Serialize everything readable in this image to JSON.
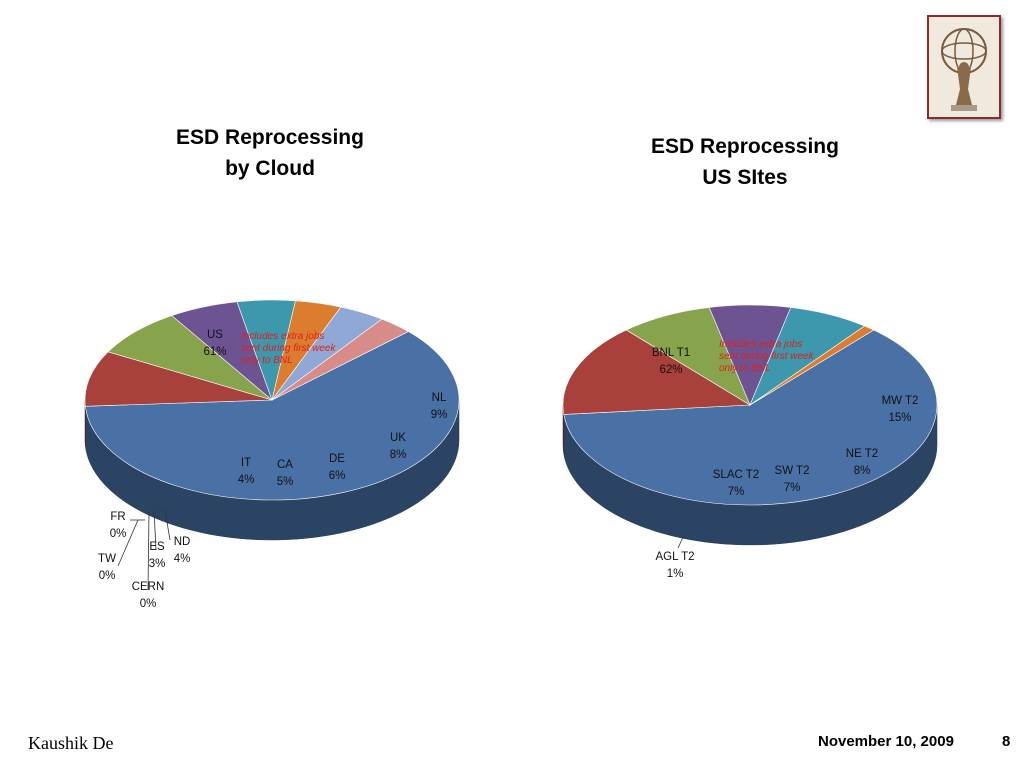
{
  "chart_data": [
    {
      "type": "pie",
      "title": [
        "ESD Reprocessing",
        "by Cloud"
      ],
      "annotation": [
        "Includes extra jobs",
        "sent during first week",
        "only to BNL"
      ],
      "slices": [
        {
          "name": "US",
          "value": 61,
          "label": "61%",
          "color": "#4a71a5"
        },
        {
          "name": "NL",
          "value": 9,
          "label": "9%",
          "color": "#a8403c"
        },
        {
          "name": "UK",
          "value": 8,
          "label": "8%",
          "color": "#87a34c"
        },
        {
          "name": "DE",
          "value": 6,
          "label": "6%",
          "color": "#6e5393"
        },
        {
          "name": "CA",
          "value": 5,
          "label": "5%",
          "color": "#3d97ad"
        },
        {
          "name": "IT",
          "value": 4,
          "label": "4%",
          "color": "#dc7c2e"
        },
        {
          "name": "ND",
          "value": 4,
          "label": "4%",
          "color": "#90a8d6"
        },
        {
          "name": "ES",
          "value": 3,
          "label": "3%",
          "color": "#d88c8a"
        },
        {
          "name": "CERN",
          "value": 0,
          "label": "0%",
          "color": "#b9cc8a"
        },
        {
          "name": "TW",
          "value": 0,
          "label": "0%",
          "color": "#a596c0"
        },
        {
          "name": "FR",
          "value": 0,
          "label": "0%",
          "color": "#84c3d3"
        }
      ]
    },
    {
      "type": "pie",
      "title": [
        "ESD Reprocessing",
        "US SItes"
      ],
      "annotation": [
        "Includes extra jobs",
        "sent during first week",
        "only to BNL"
      ],
      "slices": [
        {
          "name": "BNL T1",
          "value": 62,
          "label": "62%",
          "color": "#4a71a5"
        },
        {
          "name": "MW T2",
          "value": 15,
          "label": "15%",
          "color": "#a8403c"
        },
        {
          "name": "NE T2",
          "value": 8,
          "label": "8%",
          "color": "#87a34c"
        },
        {
          "name": "SW T2",
          "value": 7,
          "label": "7%",
          "color": "#6e5393"
        },
        {
          "name": "SLAC T2",
          "value": 7,
          "label": "7%",
          "color": "#3d97ad"
        },
        {
          "name": "AGL T2",
          "value": 1,
          "label": "1%",
          "color": "#dc7c2e"
        }
      ]
    }
  ],
  "footer": {
    "author": "Kaushik De",
    "date": "November 10, 2009",
    "page": "8"
  },
  "logo": {
    "icon": "atlas-logo-icon"
  }
}
